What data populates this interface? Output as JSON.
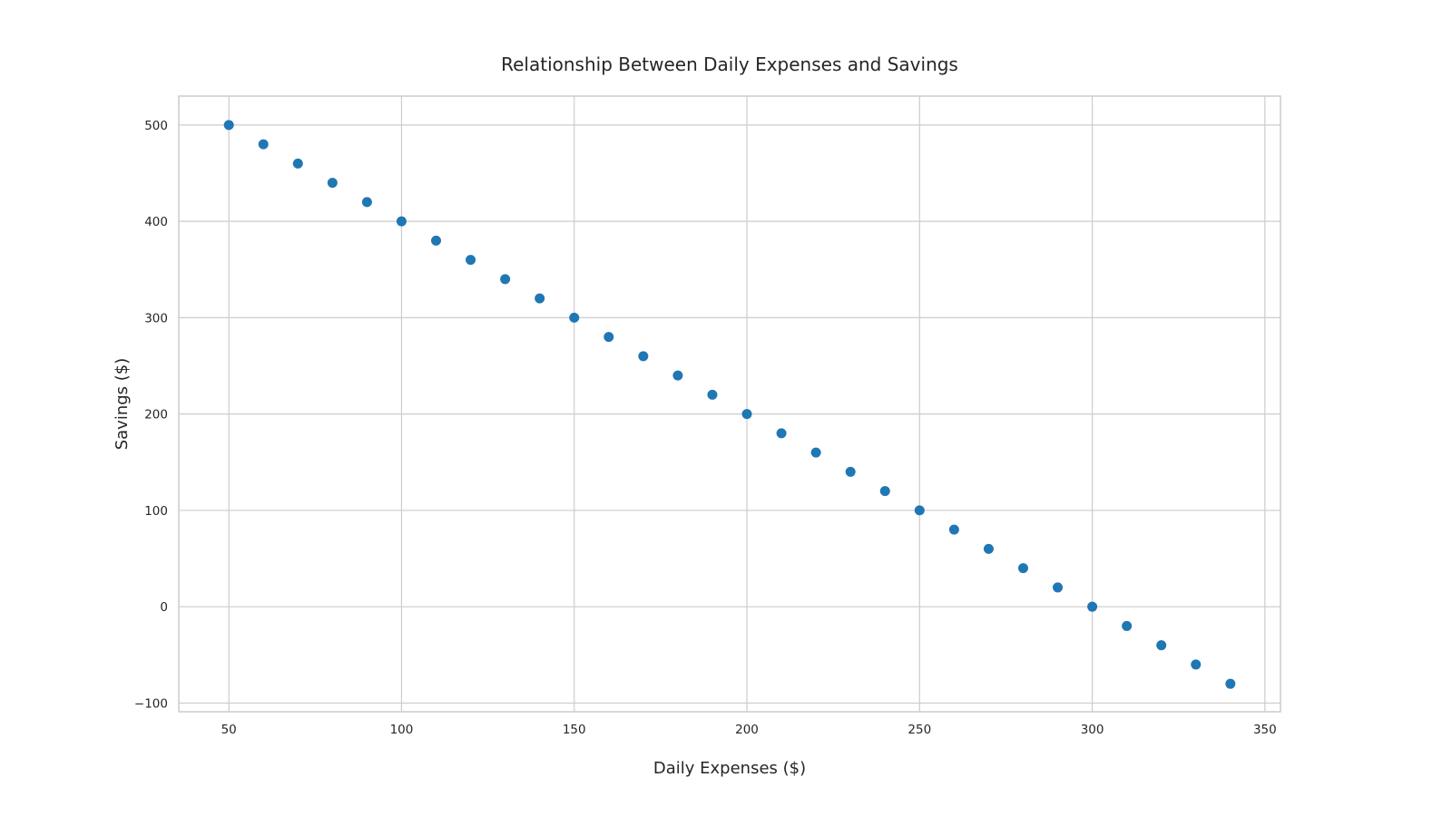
{
  "chart_data": {
    "type": "scatter",
    "title": "Relationship Between Daily Expenses and Savings",
    "xlabel": "Daily Expenses ($)",
    "ylabel": "Savings ($)",
    "xlim": [
      35.5,
      354.5
    ],
    "ylim": [
      -109,
      530
    ],
    "x_ticks": [
      50,
      100,
      150,
      200,
      250,
      300,
      350
    ],
    "x_tick_labels": [
      "50",
      "100",
      "150",
      "200",
      "250",
      "300",
      "350"
    ],
    "y_ticks": [
      -100,
      0,
      100,
      200,
      300,
      400,
      500
    ],
    "y_tick_labels": [
      "−100",
      "0",
      "100",
      "200",
      "300",
      "400",
      "500"
    ],
    "grid": true,
    "legend": false,
    "marker_color": "#1f77b4",
    "series": [
      {
        "x": [
          50,
          60,
          70,
          80,
          90,
          100,
          110,
          120,
          130,
          140,
          150,
          160,
          170,
          180,
          190,
          200,
          210,
          220,
          230,
          240,
          250,
          260,
          270,
          280,
          290,
          300,
          310,
          320,
          330,
          340
        ],
        "y": [
          500,
          480,
          460,
          440,
          420,
          400,
          380,
          360,
          340,
          320,
          300,
          280,
          260,
          240,
          220,
          200,
          180,
          160,
          140,
          120,
          100,
          80,
          60,
          40,
          20,
          0,
          -20,
          -40,
          -60,
          -80
        ]
      }
    ]
  }
}
